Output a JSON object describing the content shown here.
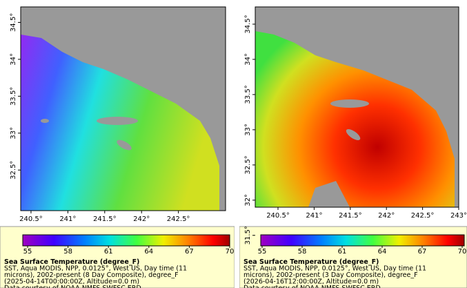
{
  "panels": [
    {
      "xlim": [
        240.36,
        243.14
      ],
      "ylim": [
        31.95,
        34.71
      ],
      "y_ticks": [
        {
          "value": 34.5,
          "label": "34.5°"
        },
        {
          "value": 34,
          "label": "34°"
        },
        {
          "value": 33.5,
          "label": "33.5°"
        },
        {
          "value": 33,
          "label": "33°"
        },
        {
          "value": 32.5,
          "label": "32.5°"
        }
      ],
      "x_ticks": [
        {
          "value": 240.5,
          "label": "240.5°"
        },
        {
          "value": 241,
          "label": "241°"
        },
        {
          "value": 241.5,
          "label": "241.5°"
        },
        {
          "value": 242,
          "label": "242°"
        },
        {
          "value": 242.5,
          "label": "242.5°"
        }
      ],
      "colorbar": {
        "lim": [
          55,
          70
        ],
        "ticks": [
          55,
          58,
          61,
          64,
          67,
          70
        ]
      },
      "legend": {
        "title": "Sea Surface Temperature (degree_F)",
        "lines": [
          "SST, Aqua MODIS, NPP, 0.0125°, West US, Day time (11",
          "microns), 2002-present (8 Day Composite), degree_F",
          "(2025-04-14T00:00:00Z, Altitude=0.0 m)",
          "Data courtesy of NOAA NMFS SWFSC ERD"
        ]
      }
    },
    {
      "xlim": [
        240.185,
        243
      ],
      "ylim": [
        31.9,
        34.745
      ],
      "y_ticks": [
        {
          "value": 34.5,
          "label": "34.5°"
        },
        {
          "value": 34,
          "label": "34°"
        },
        {
          "value": 33.5,
          "label": "33.5°"
        },
        {
          "value": 33,
          "label": "33°"
        },
        {
          "value": 32.5,
          "label": "32.5°"
        },
        {
          "value": 32,
          "label": "32°"
        },
        {
          "value": 31.5,
          "label": "31.5°"
        }
      ],
      "x_ticks": [
        {
          "value": 240.5,
          "label": "240.5°"
        },
        {
          "value": 241,
          "label": "241°"
        },
        {
          "value": 241.5,
          "label": "241.5°"
        },
        {
          "value": 242,
          "label": "242°"
        },
        {
          "value": 242.5,
          "label": "242.5°"
        },
        {
          "value": 243,
          "label": "243°"
        }
      ],
      "colorbar": {
        "lim": [
          55,
          70
        ],
        "ticks": [
          55,
          58,
          61,
          64,
          67,
          70
        ]
      },
      "legend": {
        "title": "Sea Surface Temperature (degree_F)",
        "lines": [
          "SST, Aqua MODIS, NPP, 0.0125°, West US, Day time (11",
          "microns), 2002-present (3 Day Composite), degree_F",
          "(2026-04-16T12:00:00Z, Altitude=0.0 m)",
          "Data courtesy of NOAA NMFS SWFSC ERD"
        ]
      }
    }
  ]
}
